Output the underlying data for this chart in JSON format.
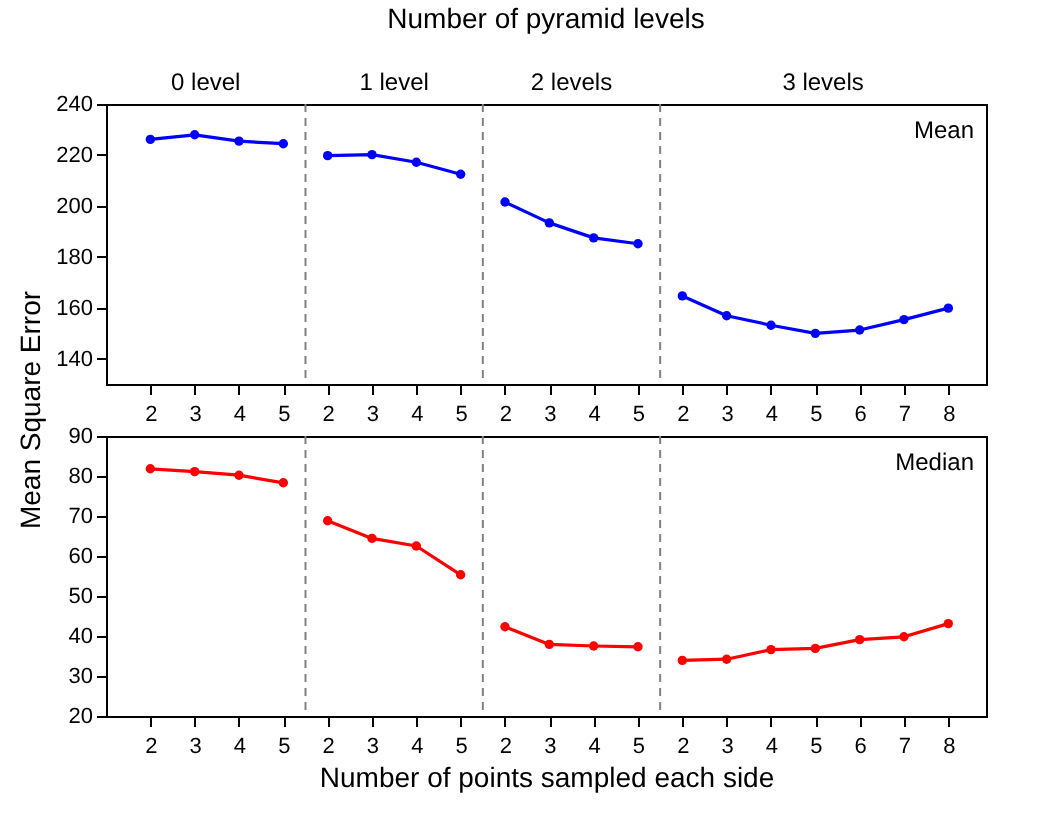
{
  "chart_data": [
    {
      "type": "line",
      "x2label": "Number of pyramid levels",
      "ylabel": "Mean Square Error",
      "categories": [
        "2",
        "3",
        "4",
        "5",
        "2",
        "3",
        "4",
        "5",
        "2",
        "3",
        "4",
        "5",
        "2",
        "3",
        "4",
        "5",
        "6",
        "7",
        "8"
      ],
      "series": [
        {
          "color": "#0000ff",
          "values": [
            226.1,
            227.9,
            225.4,
            224.4,
            null,
            null,
            null,
            null,
            null,
            null,
            null,
            null,
            null,
            null,
            null,
            null,
            null,
            null,
            null
          ]
        },
        {
          "color": "#0000ff",
          "values": [
            null,
            null,
            null,
            null,
            219.7,
            220.1,
            217.1,
            212.4,
            null,
            null,
            null,
            null,
            null,
            null,
            null,
            null,
            null,
            null,
            null
          ]
        },
        {
          "color": "#0000ff",
          "values": [
            null,
            null,
            null,
            null,
            null,
            null,
            null,
            null,
            201.5,
            193.3,
            187.4,
            185.1,
            null,
            null,
            null,
            null,
            null,
            null,
            null
          ]
        },
        {
          "color": "#0000ff",
          "values": [
            null,
            null,
            null,
            null,
            null,
            null,
            null,
            null,
            null,
            null,
            null,
            null,
            164.6,
            156.8,
            153.1,
            149.9,
            151.2,
            155.3,
            159.8
          ]
        }
      ],
      "annotations": [
        "0 level",
        "1 level",
        "2 levels",
        "3 levels",
        "Mean"
      ],
      "ylim": [
        130,
        240
      ],
      "yticks": [
        140,
        160,
        180,
        200,
        220,
        240
      ],
      "marker": "circle",
      "line_style": "solid",
      "grid": false
    },
    {
      "type": "line",
      "xlabel": "Number of points sampled each side",
      "categories": [
        "2",
        "3",
        "4",
        "5",
        "2",
        "3",
        "4",
        "5",
        "2",
        "3",
        "4",
        "5",
        "2",
        "3",
        "4",
        "5",
        "6",
        "7",
        "8"
      ],
      "series": [
        {
          "color": "#ff0000",
          "values": [
            81.8,
            81.1,
            80.2,
            78.3,
            null,
            null,
            null,
            null,
            null,
            null,
            null,
            null,
            null,
            null,
            null,
            null,
            null,
            null,
            null
          ]
        },
        {
          "color": "#ff0000",
          "values": [
            null,
            null,
            null,
            null,
            68.8,
            64.4,
            62.5,
            55.3,
            null,
            null,
            null,
            null,
            null,
            null,
            null,
            null,
            null,
            null,
            null
          ]
        },
        {
          "color": "#ff0000",
          "values": [
            null,
            null,
            null,
            null,
            null,
            null,
            null,
            null,
            42.3,
            37.9,
            37.5,
            37.3,
            null,
            null,
            null,
            null,
            null,
            null,
            null
          ]
        },
        {
          "color": "#ff0000",
          "values": [
            null,
            null,
            null,
            null,
            null,
            null,
            null,
            null,
            null,
            null,
            null,
            null,
            33.9,
            34.2,
            36.6,
            36.9,
            39.1,
            39.8,
            43.1
          ]
        }
      ],
      "annotations": [
        "Median"
      ],
      "ylim": [
        20,
        90
      ],
      "yticks": [
        20,
        30,
        40,
        50,
        60,
        70,
        80,
        90
      ],
      "marker": "circle",
      "line_style": "solid",
      "grid": false
    }
  ]
}
